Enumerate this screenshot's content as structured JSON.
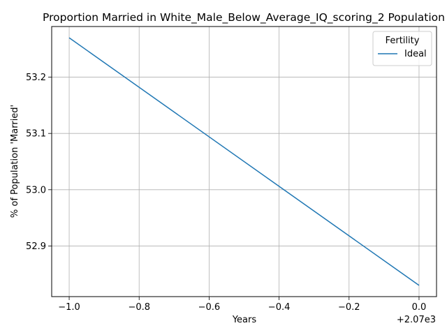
{
  "chart_data": {
    "type": "line",
    "title": "Proportion Married in White_Male_Below_Average_IQ_scoring_2 Population",
    "xlabel": "Years",
    "ylabel": "% of Population 'Married'",
    "x_offset_label": "+2.07e3",
    "x": [
      -1.0,
      0.0
    ],
    "series": [
      {
        "name": "Ideal",
        "color": "#1f77b4",
        "values": [
          53.27,
          52.83
        ]
      }
    ],
    "xlim": [
      -1.05,
      0.05
    ],
    "ylim": [
      52.81,
      53.29
    ],
    "xticks": [
      -1.0,
      -0.8,
      -0.6,
      -0.4,
      -0.2,
      0.0
    ],
    "xtick_labels": [
      "−1.0",
      "−0.8",
      "−0.6",
      "−0.4",
      "−0.2",
      "0.0"
    ],
    "yticks": [
      52.9,
      53.0,
      53.1,
      53.2
    ],
    "ytick_labels": [
      "52.9",
      "53.0",
      "53.1",
      "53.2"
    ],
    "grid": true,
    "legend": {
      "title": "Fertility",
      "position": "upper right"
    }
  }
}
